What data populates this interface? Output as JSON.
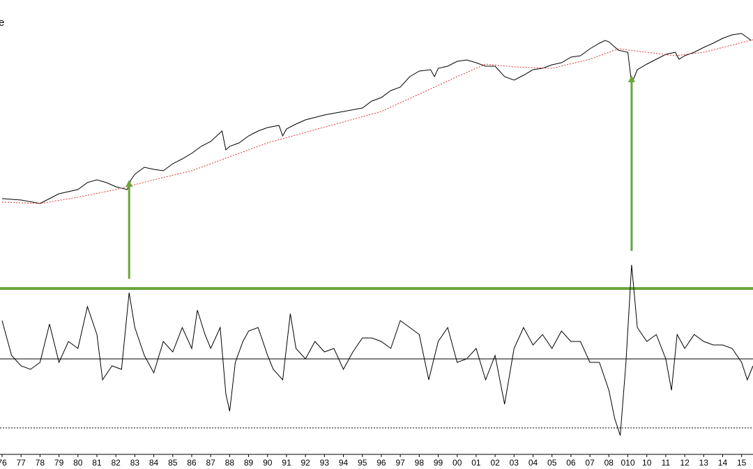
{
  "chart_data": {
    "type": "line",
    "title": "e",
    "xlim": [
      1975.89,
      2015.6
    ],
    "xticks": [
      {
        "value": 1976,
        "label": "76"
      },
      {
        "value": 1977,
        "label": "77"
      },
      {
        "value": 1978,
        "label": "78"
      },
      {
        "value": 1979,
        "label": "79"
      },
      {
        "value": 1980,
        "label": "80"
      },
      {
        "value": 1981,
        "label": "81"
      },
      {
        "value": 1982,
        "label": "82"
      },
      {
        "value": 1983,
        "label": "83"
      },
      {
        "value": 1984,
        "label": "84"
      },
      {
        "value": 1985,
        "label": "85"
      },
      {
        "value": 1986,
        "label": "86"
      },
      {
        "value": 1987,
        "label": "87"
      },
      {
        "value": 1988,
        "label": "88"
      },
      {
        "value": 1989,
        "label": "89"
      },
      {
        "value": 1990,
        "label": "90"
      },
      {
        "value": 1991,
        "label": "91"
      },
      {
        "value": 1992,
        "label": "92"
      },
      {
        "value": 1993,
        "label": "93"
      },
      {
        "value": 1994,
        "label": "94"
      },
      {
        "value": 1995,
        "label": "95"
      },
      {
        "value": 1996,
        "label": "96"
      },
      {
        "value": 1997,
        "label": "97"
      },
      {
        "value": 1998,
        "label": "98"
      },
      {
        "value": 1999,
        "label": "99"
      },
      {
        "value": 2000,
        "label": "00"
      },
      {
        "value": 2001,
        "label": "01"
      },
      {
        "value": 2002,
        "label": "02"
      },
      {
        "value": 2003,
        "label": "03"
      },
      {
        "value": 2004,
        "label": "04"
      },
      {
        "value": 2005,
        "label": "05"
      },
      {
        "value": 2006,
        "label": "06"
      },
      {
        "value": 2007,
        "label": "07"
      },
      {
        "value": 2008,
        "label": "08"
      },
      {
        "value": 2009,
        "label": "010"
      },
      {
        "value": 2010,
        "label": "10"
      },
      {
        "value": 2011,
        "label": "11"
      },
      {
        "value": 2012,
        "label": "12"
      },
      {
        "value": 2013,
        "label": "13"
      },
      {
        "value": 2014,
        "label": "14"
      },
      {
        "value": 2015,
        "label": "15"
      }
    ],
    "panels": [
      {
        "ylim": [
          0,
          260
        ],
        "series": [
          {
            "color": "#000000",
            "dashed": false,
            "x": [
              1976,
              1977,
              1978,
              1978.5,
              1979,
              1980,
              1980.5,
              1981,
              1981.5,
              1982,
              1982.6,
              1982.8,
              1983,
              1983.5,
              1984,
              1984.5,
              1985,
              1985.5,
              1986,
              1986.5,
              1987,
              1987.6,
              1987.8,
              1988,
              1988.5,
              1989,
              1989.5,
              1990,
              1990.6,
              1990.8,
              1991,
              1991.5,
              1992,
              1993,
              1994,
              1995,
              1995.5,
              1996,
              1996.5,
              1997,
              1997.5,
              1998,
              1998.6,
              1998.8,
              1999,
              1999.5,
              2000,
              2000.5,
              2001,
              2001.5,
              2002,
              2002.5,
              2003,
              2003.5,
              2004,
              2004.5,
              2005,
              2005.5,
              2006,
              2006.5,
              2007,
              2007.5,
              2007.8,
              2008,
              2008.5,
              2009,
              2009.2,
              2009.5,
              2010,
              2010.5,
              2011,
              2011.5,
              2011.7,
              2012,
              2012.5,
              2013,
              2013.5,
              2014,
              2014.5,
              2015,
              2015.5
            ],
            "values": [
              15,
              13,
              8,
              15,
              22,
              28,
              38,
              42,
              38,
              32,
              28,
              42,
              50,
              60,
              57,
              55,
              65,
              72,
              80,
              90,
              97,
              112,
              85,
              90,
              95,
              105,
              112,
              117,
              120,
              105,
              115,
              122,
              128,
              135,
              140,
              145,
              155,
              160,
              170,
              175,
              190,
              198,
              200,
              190,
              202,
              205,
              212,
              214,
              210,
              205,
              205,
              190,
              185,
              192,
              200,
              202,
              207,
              210,
              218,
              220,
              230,
              238,
              242,
              240,
              228,
              225,
              180,
              200,
              208,
              215,
              222,
              225,
              215,
              220,
              225,
              232,
              238,
              245,
              250,
              252,
              242
            ]
          },
          {
            "color": "#e03030",
            "dashed": true,
            "x": [
              1976,
              1978,
              1980,
              1982,
              1984,
              1986,
              1988,
              1990,
              1992,
              1994,
              1996,
              1998,
              2000,
              2001.5,
              2003,
              2005,
              2007,
              2008.5,
              2010,
              2011.5,
              2013,
              2015.6
            ],
            "values": [
              10,
              8,
              17,
              28,
              42,
              55,
              75,
              95,
              110,
              125,
              140,
              165,
              190,
              208,
              204,
              202,
              215,
              230,
              225,
              220,
              225,
              243
            ]
          }
        ],
        "arrows_top": [
          42,
          192
        ]
      },
      {
        "ylim": [
          -125,
          145
        ],
        "hlines": [
          {
            "value": 0,
            "color": "#000000",
            "style": "solid"
          },
          {
            "value": -99,
            "color": "#000000",
            "style": "dotted"
          },
          {
            "value": 101,
            "color": "#6aa63c",
            "style": "thick"
          }
        ],
        "series": [
          {
            "color": "#000000",
            "dashed": false,
            "x": [
              1976,
              1976.5,
              1977,
              1977.5,
              1978,
              1978.5,
              1979,
              1979.5,
              1980,
              1980.5,
              1981,
              1981.3,
              1981.8,
              1982.3,
              1982.7,
              1983,
              1983.5,
              1984,
              1984.5,
              1985,
              1985.5,
              1986,
              1986.3,
              1986.7,
              1987,
              1987.5,
              1987.8,
              1988,
              1988.3,
              1988.7,
              1989,
              1989.5,
              1990,
              1990.3,
              1990.8,
              1991.2,
              1991.5,
              1992,
              1992.5,
              1993,
              1993.5,
              1994,
              1994.5,
              1995,
              1995.5,
              1996,
              1996.5,
              1997,
              1997.5,
              1998,
              1998.5,
              1999,
              1999.5,
              2000,
              2000.5,
              2001,
              2001.5,
              2002,
              2002.5,
              2003,
              2003.5,
              2004,
              2004.5,
              2005,
              2005.5,
              2006,
              2006.5,
              2007,
              2007.5,
              2008,
              2008.3,
              2008.6,
              2008.9,
              2009.2,
              2009.5,
              2010,
              2010.5,
              2011,
              2011.3,
              2011.6,
              2012,
              2012.5,
              2013,
              2013.5,
              2014,
              2014.5,
              2015,
              2015.3,
              2015.6
            ],
            "values": [
              55,
              5,
              -10,
              -15,
              -5,
              50,
              -5,
              25,
              15,
              75,
              35,
              -30,
              -10,
              -15,
              95,
              45,
              5,
              -20,
              25,
              10,
              45,
              15,
              70,
              35,
              15,
              45,
              -50,
              -75,
              -5,
              25,
              40,
              45,
              5,
              -15,
              -30,
              65,
              15,
              0,
              25,
              10,
              15,
              -15,
              10,
              30,
              30,
              25,
              15,
              55,
              45,
              35,
              -30,
              25,
              45,
              -5,
              0,
              15,
              -30,
              5,
              -65,
              15,
              45,
              20,
              35,
              15,
              40,
              25,
              25,
              -5,
              -5,
              -45,
              -85,
              -110,
              -5,
              135,
              45,
              25,
              35,
              0,
              -45,
              35,
              15,
              35,
              25,
              20,
              20,
              15,
              -5,
              -30,
              -10
            ]
          }
        ],
        "arrows_bottom": [
          115,
          155
        ]
      }
    ],
    "arrows_x": [
      1982.7,
      2009.2
    ],
    "arrow_color": "#6aa63c"
  }
}
